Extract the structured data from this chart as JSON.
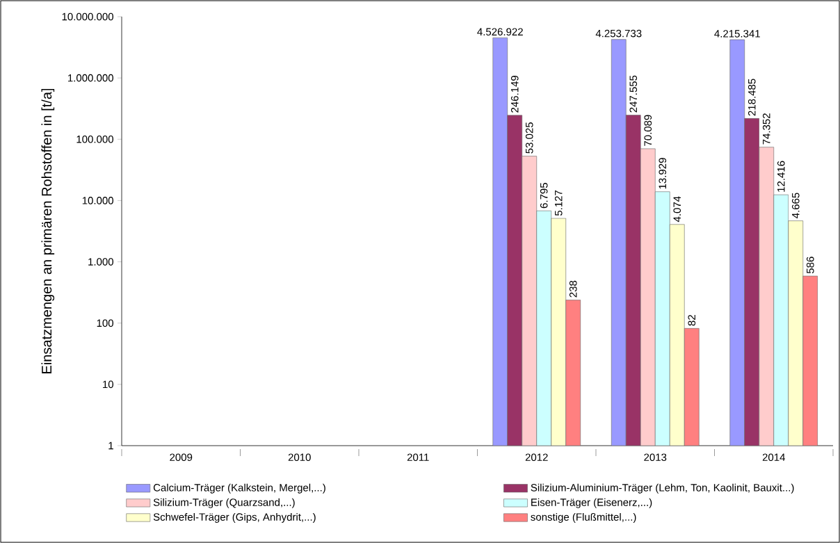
{
  "chart_data": {
    "type": "bar",
    "ylabel": "Einsatzmengen an primären Rohstoffen in [t/a]",
    "categories": [
      "2009",
      "2010",
      "2011",
      "2012",
      "2013",
      "2014"
    ],
    "log": true,
    "ylim": [
      1,
      10000000
    ],
    "yticks": [
      {
        "value": 1,
        "label": "1"
      },
      {
        "value": 10,
        "label": "10"
      },
      {
        "value": 100,
        "label": "100"
      },
      {
        "value": 1000,
        "label": "1.000"
      },
      {
        "value": 10000,
        "label": "10.000"
      },
      {
        "value": 100000,
        "label": "100.000"
      },
      {
        "value": 1000000,
        "label": "1.000.000"
      },
      {
        "value": 10000000,
        "label": "10.000.000"
      }
    ],
    "legend": "bottom",
    "series": [
      {
        "name": "Calcium-Träger (Kalkstein, Mergel,...)",
        "color": "#9999ff",
        "values": [
          null,
          null,
          null,
          4526922,
          4253733,
          4215341
        ],
        "value_labels": [
          null,
          null,
          null,
          "4.526.922",
          "4.253.733",
          "4.215.341"
        ]
      },
      {
        "name": "Silizium-Aluminium-Träger (Lehm, Ton, Kaolinit, Bauxit...)",
        "color": "#993366",
        "values": [
          null,
          null,
          null,
          246149,
          247555,
          218485
        ],
        "value_labels": [
          null,
          null,
          null,
          "246.149",
          "247.555",
          "218.485"
        ]
      },
      {
        "name": "Silizium-Träger (Quarzsand,...)",
        "color": "#ffcccc",
        "values": [
          null,
          null,
          null,
          53025,
          70089,
          74352
        ],
        "value_labels": [
          null,
          null,
          null,
          "53.025",
          "70.089",
          "74.352"
        ]
      },
      {
        "name": "Eisen-Träger (Eisenerz,...)",
        "color": "#ccffff",
        "values": [
          null,
          null,
          null,
          6795,
          13929,
          12416
        ],
        "value_labels": [
          null,
          null,
          null,
          "6.795",
          "13.929",
          "12.416"
        ]
      },
      {
        "name": "Schwefel-Träger (Gips, Anhydrit,...)",
        "color": "#ffffcc",
        "values": [
          null,
          null,
          null,
          5127,
          4074,
          4665
        ],
        "value_labels": [
          null,
          null,
          null,
          "5.127",
          "4.074",
          "4.665"
        ]
      },
      {
        "name": "sonstige (Flußmittel,...)",
        "color": "#ff8080",
        "values": [
          null,
          null,
          null,
          238,
          82,
          586
        ],
        "value_labels": [
          null,
          null,
          null,
          "238",
          "82",
          "586"
        ]
      }
    ]
  }
}
